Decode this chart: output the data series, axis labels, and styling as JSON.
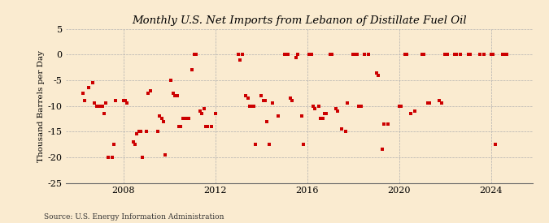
{
  "title": "Monthly U.S. Net Imports from Lebanon of Distillate Fuel Oil",
  "ylabel": "Thousand Barrels per Day",
  "source": "Source: U.S. Energy Information Administration",
  "background_color": "#faebd0",
  "plot_bg_color": "#faebd0",
  "marker_color": "#cc0000",
  "marker_size": 9,
  "ylim": [
    -25,
    5
  ],
  "yticks": [
    5,
    0,
    -5,
    -10,
    -15,
    -20,
    -25
  ],
  "xlim_start": 2005.5,
  "xlim_end": 2025.8,
  "xticks": [
    2008,
    2012,
    2016,
    2020,
    2024
  ],
  "data_points": [
    [
      2006.25,
      -7.5
    ],
    [
      2006.33,
      -9.0
    ],
    [
      2006.5,
      -6.5
    ],
    [
      2006.67,
      -5.5
    ],
    [
      2006.75,
      -9.5
    ],
    [
      2006.83,
      -10.0
    ],
    [
      2007.0,
      -10.0
    ],
    [
      2007.08,
      -10.0
    ],
    [
      2007.17,
      -11.5
    ],
    [
      2007.25,
      -9.5
    ],
    [
      2007.33,
      -20.0
    ],
    [
      2007.5,
      -20.0
    ],
    [
      2007.58,
      -17.5
    ],
    [
      2007.67,
      -9.0
    ],
    [
      2008.0,
      -9.0
    ],
    [
      2008.08,
      -9.0
    ],
    [
      2008.17,
      -9.5
    ],
    [
      2008.42,
      -17.0
    ],
    [
      2008.5,
      -17.5
    ],
    [
      2008.58,
      -15.5
    ],
    [
      2008.67,
      -15.0
    ],
    [
      2008.75,
      -15.0
    ],
    [
      2008.83,
      -20.0
    ],
    [
      2009.0,
      -15.0
    ],
    [
      2009.08,
      -7.5
    ],
    [
      2009.17,
      -7.0
    ],
    [
      2009.5,
      -15.0
    ],
    [
      2009.58,
      -12.0
    ],
    [
      2009.67,
      -12.5
    ],
    [
      2009.75,
      -13.0
    ],
    [
      2009.83,
      -19.5
    ],
    [
      2010.08,
      -5.0
    ],
    [
      2010.17,
      -7.5
    ],
    [
      2010.25,
      -8.0
    ],
    [
      2010.33,
      -8.0
    ],
    [
      2010.42,
      -14.0
    ],
    [
      2010.5,
      -14.0
    ],
    [
      2010.58,
      -12.5
    ],
    [
      2010.75,
      -12.5
    ],
    [
      2010.83,
      -12.5
    ],
    [
      2011.0,
      -3.0
    ],
    [
      2011.08,
      0.0
    ],
    [
      2011.17,
      0.0
    ],
    [
      2011.33,
      -11.0
    ],
    [
      2011.42,
      -11.5
    ],
    [
      2011.5,
      -10.5
    ],
    [
      2011.58,
      -14.0
    ],
    [
      2011.67,
      -14.0
    ],
    [
      2011.83,
      -14.0
    ],
    [
      2012.0,
      -11.5
    ],
    [
      2013.0,
      0.0
    ],
    [
      2013.08,
      -1.0
    ],
    [
      2013.17,
      0.0
    ],
    [
      2013.33,
      -8.0
    ],
    [
      2013.42,
      -8.5
    ],
    [
      2013.5,
      -10.0
    ],
    [
      2013.58,
      -10.0
    ],
    [
      2013.67,
      -10.0
    ],
    [
      2013.75,
      -17.5
    ],
    [
      2014.0,
      -8.0
    ],
    [
      2014.08,
      -9.0
    ],
    [
      2014.17,
      -9.0
    ],
    [
      2014.25,
      -13.0
    ],
    [
      2014.33,
      -17.5
    ],
    [
      2014.5,
      -9.5
    ],
    [
      2014.75,
      -12.0
    ],
    [
      2015.0,
      0.0
    ],
    [
      2015.08,
      0.0
    ],
    [
      2015.17,
      0.0
    ],
    [
      2015.25,
      -8.5
    ],
    [
      2015.33,
      -9.0
    ],
    [
      2015.5,
      -0.5
    ],
    [
      2015.58,
      0.0
    ],
    [
      2015.75,
      -12.0
    ],
    [
      2015.83,
      -17.5
    ],
    [
      2016.08,
      0.0
    ],
    [
      2016.17,
      0.0
    ],
    [
      2016.25,
      -10.0
    ],
    [
      2016.33,
      -10.5
    ],
    [
      2016.5,
      -10.0
    ],
    [
      2016.58,
      -12.5
    ],
    [
      2016.67,
      -12.5
    ],
    [
      2016.75,
      -11.5
    ],
    [
      2016.83,
      -11.5
    ],
    [
      2017.0,
      0.0
    ],
    [
      2017.08,
      0.0
    ],
    [
      2017.25,
      -10.5
    ],
    [
      2017.33,
      -11.0
    ],
    [
      2017.5,
      -14.5
    ],
    [
      2017.67,
      -15.0
    ],
    [
      2017.75,
      -9.5
    ],
    [
      2018.0,
      0.0
    ],
    [
      2018.08,
      0.0
    ],
    [
      2018.17,
      0.0
    ],
    [
      2018.25,
      -10.0
    ],
    [
      2018.33,
      -10.0
    ],
    [
      2018.5,
      0.0
    ],
    [
      2018.67,
      0.0
    ],
    [
      2019.0,
      -3.5
    ],
    [
      2019.08,
      -4.0
    ],
    [
      2019.25,
      -18.5
    ],
    [
      2019.33,
      -13.5
    ],
    [
      2019.5,
      -13.5
    ],
    [
      2020.0,
      -10.0
    ],
    [
      2020.08,
      -10.0
    ],
    [
      2020.25,
      0.0
    ],
    [
      2020.33,
      0.0
    ],
    [
      2020.5,
      -11.5
    ],
    [
      2020.67,
      -11.0
    ],
    [
      2021.0,
      0.0
    ],
    [
      2021.08,
      0.0
    ],
    [
      2021.25,
      -9.5
    ],
    [
      2021.33,
      -9.5
    ],
    [
      2021.75,
      -9.0
    ],
    [
      2021.83,
      -9.5
    ],
    [
      2022.0,
      0.0
    ],
    [
      2022.08,
      0.0
    ],
    [
      2022.42,
      0.0
    ],
    [
      2022.5,
      0.0
    ],
    [
      2022.67,
      0.0
    ],
    [
      2023.0,
      0.0
    ],
    [
      2023.08,
      0.0
    ],
    [
      2023.5,
      0.0
    ],
    [
      2023.67,
      0.0
    ],
    [
      2024.0,
      0.0
    ],
    [
      2024.08,
      0.0
    ],
    [
      2024.17,
      -17.5
    ],
    [
      2024.5,
      0.0
    ],
    [
      2024.58,
      0.0
    ],
    [
      2024.67,
      0.0
    ]
  ]
}
